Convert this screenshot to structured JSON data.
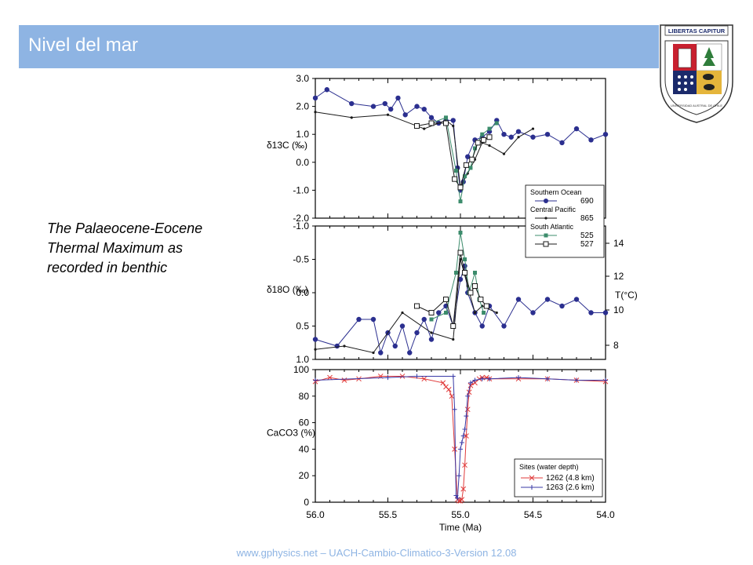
{
  "slide": {
    "title": "Nivel del mar",
    "caption": "The Palaeocene-Eocene Thermal Maximum as recorded in benthic",
    "footer": "www.gphysics.net – UACH-Cambio-Climatico-3-Version 12.08"
  },
  "logo": {
    "banner_text": "LIBERTAS CAPITUR",
    "ring_text": "UNIVERSIDAD AUSTRAL DE CHILE",
    "colors": {
      "red": "#c8202f",
      "navy": "#1b2a6b",
      "gold": "#e5b53b",
      "green": "#2f7d3b"
    }
  },
  "colors": {
    "title_bar": "#8eb4e3",
    "footer_text": "#8eb4e3",
    "site_690": "#2b2f8f",
    "site_865": "#1a1a1a",
    "site_525": "#3c8c6c",
    "site_527": "#1a1a1a",
    "site_1262": "#e03a3a",
    "site_1263": "#3a3aa6"
  },
  "chart_data": [
    {
      "type": "line",
      "ylabel": "δ13C (‰)",
      "ylim": [
        -2.0,
        3.0
      ],
      "yticks": [
        "3.0",
        "2.0",
        "1.0",
        "0.0",
        "-1.0",
        "-2.0"
      ],
      "xlim": [
        56.0,
        54.0
      ],
      "legend": {
        "position": "bottom-right",
        "groups": [
          {
            "header": "Southern Ocean",
            "entries": [
              "690"
            ]
          },
          {
            "header": "Central Pacific",
            "entries": [
              "865"
            ]
          },
          {
            "header": "South Atlantic",
            "entries": [
              "525",
              "527"
            ]
          }
        ]
      },
      "series": [
        {
          "name": "690",
          "marker": "circle",
          "x": [
            56.0,
            55.92,
            55.75,
            55.6,
            55.52,
            55.48,
            55.43,
            55.38,
            55.3,
            55.25,
            55.2,
            55.15,
            55.1,
            55.05,
            55.02,
            55.0,
            54.98,
            54.95,
            54.9,
            54.85,
            54.8,
            54.75,
            54.7,
            54.65,
            54.6,
            54.5,
            54.4,
            54.3,
            54.2,
            54.1,
            54.0
          ],
          "y": [
            2.3,
            2.6,
            2.1,
            2.0,
            2.1,
            1.9,
            2.3,
            1.7,
            2.0,
            1.9,
            1.6,
            1.4,
            1.5,
            1.5,
            -0.2,
            -1.0,
            -0.7,
            0.2,
            0.8,
            0.9,
            1.1,
            1.5,
            1.0,
            0.9,
            1.1,
            0.9,
            1.0,
            0.7,
            1.2,
            0.8,
            1.0
          ]
        },
        {
          "name": "865",
          "marker": "dot",
          "x": [
            56.0,
            55.75,
            55.5,
            55.25,
            55.1,
            55.05,
            55.0,
            54.95,
            54.9,
            54.85,
            54.8,
            54.7,
            54.6,
            54.5
          ],
          "y": [
            1.8,
            1.6,
            1.7,
            1.2,
            1.5,
            1.3,
            -0.9,
            -0.4,
            0.1,
            0.7,
            0.6,
            0.3,
            0.9,
            1.2
          ]
        },
        {
          "name": "525",
          "marker": "square-filled",
          "x": [
            55.2,
            55.1,
            55.03,
            55.0,
            54.97,
            54.93,
            54.9,
            54.85,
            54.8,
            54.75
          ],
          "y": [
            1.4,
            1.6,
            -0.3,
            -1.4,
            -0.5,
            -0.2,
            0.5,
            1.0,
            1.2,
            1.4
          ]
        },
        {
          "name": "527",
          "marker": "square-open",
          "x": [
            55.3,
            55.2,
            55.1,
            55.04,
            55.0,
            54.96,
            54.92,
            54.88,
            54.84,
            54.8
          ],
          "y": [
            1.3,
            1.4,
            1.4,
            -0.6,
            -0.9,
            -0.1,
            0.1,
            0.7,
            0.8,
            0.9
          ]
        }
      ]
    },
    {
      "type": "line",
      "ylabel": "δ18O (‰)",
      "ylim": [
        1.0,
        -1.0
      ],
      "yticks": [
        "-1.0",
        "-0.5",
        "0.0",
        "0.5",
        "1.0"
      ],
      "y2label": "T(°C)",
      "y2ticks": [
        "14",
        "12",
        "10",
        "8"
      ],
      "xlim": [
        56.0,
        54.0
      ],
      "series": [
        {
          "name": "690",
          "marker": "circle",
          "x": [
            56.0,
            55.85,
            55.7,
            55.6,
            55.55,
            55.5,
            55.45,
            55.4,
            55.35,
            55.3,
            55.25,
            55.2,
            55.15,
            55.1,
            55.05,
            55.0,
            54.97,
            54.95,
            54.9,
            54.85,
            54.8,
            54.7,
            54.6,
            54.5,
            54.4,
            54.3,
            54.2,
            54.1,
            54.0
          ],
          "y": [
            0.7,
            0.8,
            0.4,
            0.4,
            0.9,
            0.6,
            0.8,
            0.5,
            0.9,
            0.6,
            0.4,
            0.7,
            0.3,
            0.2,
            0.5,
            -0.2,
            -0.4,
            0.0,
            0.3,
            0.5,
            0.2,
            0.5,
            0.1,
            0.3,
            0.1,
            0.2,
            0.1,
            0.3,
            0.3
          ]
        },
        {
          "name": "865",
          "marker": "dot",
          "x": [
            56.0,
            55.8,
            55.6,
            55.4,
            55.2,
            55.05,
            55.0,
            54.95,
            54.9,
            54.85,
            54.75
          ],
          "y": [
            0.85,
            0.8,
            0.9,
            0.3,
            0.6,
            0.7,
            -0.5,
            -0.1,
            0.3,
            0.2,
            0.3
          ]
        },
        {
          "name": "525",
          "marker": "square-filled",
          "x": [
            55.2,
            55.1,
            55.03,
            55.0,
            54.97,
            54.94,
            54.9,
            54.87,
            54.84
          ],
          "y": [
            0.4,
            0.3,
            -0.3,
            -0.9,
            -0.5,
            0.0,
            -0.3,
            0.1,
            0.3
          ]
        },
        {
          "name": "527",
          "marker": "square-open",
          "x": [
            55.3,
            55.2,
            55.1,
            55.05,
            55.0,
            54.97,
            54.93,
            54.9,
            54.86,
            54.82
          ],
          "y": [
            0.2,
            0.3,
            0.1,
            0.5,
            -0.6,
            -0.3,
            0.0,
            -0.1,
            0.1,
            0.2
          ]
        }
      ]
    },
    {
      "type": "line",
      "ylabel": "CaCO3 (%)",
      "ylim": [
        0,
        100
      ],
      "yticks": [
        "100",
        "80",
        "60",
        "40",
        "20",
        "0"
      ],
      "xlabel": "Time (Ma)",
      "xlim": [
        56.0,
        54.0
      ],
      "xticks": [
        "56.0",
        "55.5",
        "55.0",
        "54.5",
        "54.0"
      ],
      "legend": {
        "position": "bottom-right",
        "header": "Sites (water depth)",
        "entries": [
          "1262 (4.8 km)",
          "1263 (2.6 km)"
        ]
      },
      "series": [
        {
          "name": "1262 (4.8 km)",
          "marker": "x",
          "x": [
            56.0,
            55.9,
            55.8,
            55.7,
            55.55,
            55.4,
            55.25,
            55.12,
            55.1,
            55.08,
            55.06,
            55.04,
            55.02,
            55.01,
            55.0,
            54.99,
            54.98,
            54.97,
            54.96,
            54.95,
            54.94,
            54.93,
            54.9,
            54.87,
            54.85,
            54.82,
            54.8,
            54.6,
            54.4,
            54.2,
            54.0
          ],
          "y": [
            91,
            94,
            92,
            93,
            95,
            95,
            93,
            90,
            87,
            85,
            80,
            40,
            2,
            1,
            1,
            2,
            10,
            28,
            50,
            70,
            83,
            88,
            90,
            93,
            94,
            94,
            93,
            93,
            93,
            92,
            91
          ]
        },
        {
          "name": "1263 (2.6 km)",
          "marker": "plus",
          "x": [
            56.0,
            55.5,
            55.3,
            55.05,
            55.04,
            55.03,
            55.02,
            55.01,
            55.0,
            54.99,
            54.98,
            54.97,
            54.96,
            54.95,
            54.93,
            54.9,
            54.85,
            54.8,
            54.6,
            54.4,
            54.2,
            54.0
          ],
          "y": [
            92,
            94,
            95,
            95,
            70,
            5,
            3,
            20,
            40,
            45,
            50,
            55,
            65,
            80,
            90,
            92,
            93,
            93,
            94,
            93,
            92,
            92
          ]
        }
      ]
    }
  ]
}
